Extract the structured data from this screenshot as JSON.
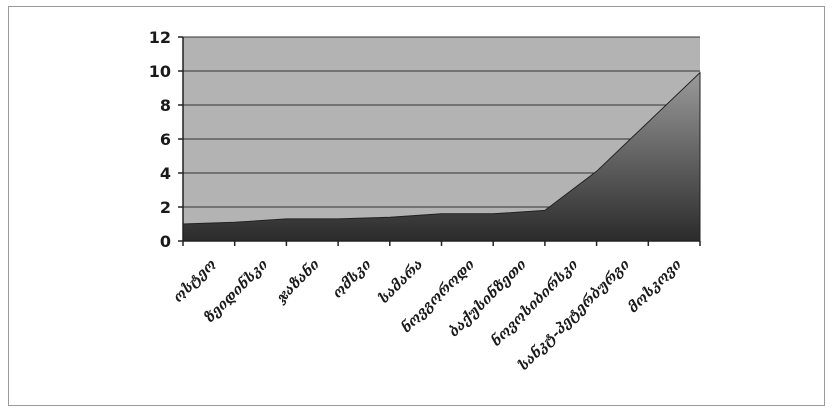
{
  "chart_data": {
    "type": "area",
    "title": "",
    "xlabel": "",
    "ylabel": "",
    "ylim": [
      0,
      12
    ],
    "y_ticks": [
      "0",
      "2",
      "4",
      "6",
      "8",
      "10",
      "12"
    ],
    "grid": true,
    "legend": "none",
    "categories": [
      "ოსტეო",
      "ზეიდინსკი",
      "ჯაზანი",
      "ომსკი",
      "სამარა",
      "ნოვგოროდი",
      "ბაქუსინზეთი",
      "ნოვოსიბირსკი",
      "სანკტ-პეტერბურგი",
      "მოსკოვი"
    ],
    "values": [
      1.0,
      1.1,
      1.3,
      1.3,
      1.4,
      1.6,
      1.6,
      1.8,
      4.1,
      9.9
    ],
    "colors": {
      "plot_background": "#b3b3b3",
      "area_top": "#9a9a9a",
      "area_bottom": "#2b2b2b",
      "gridline": "#333333",
      "axis": "#222222"
    }
  }
}
